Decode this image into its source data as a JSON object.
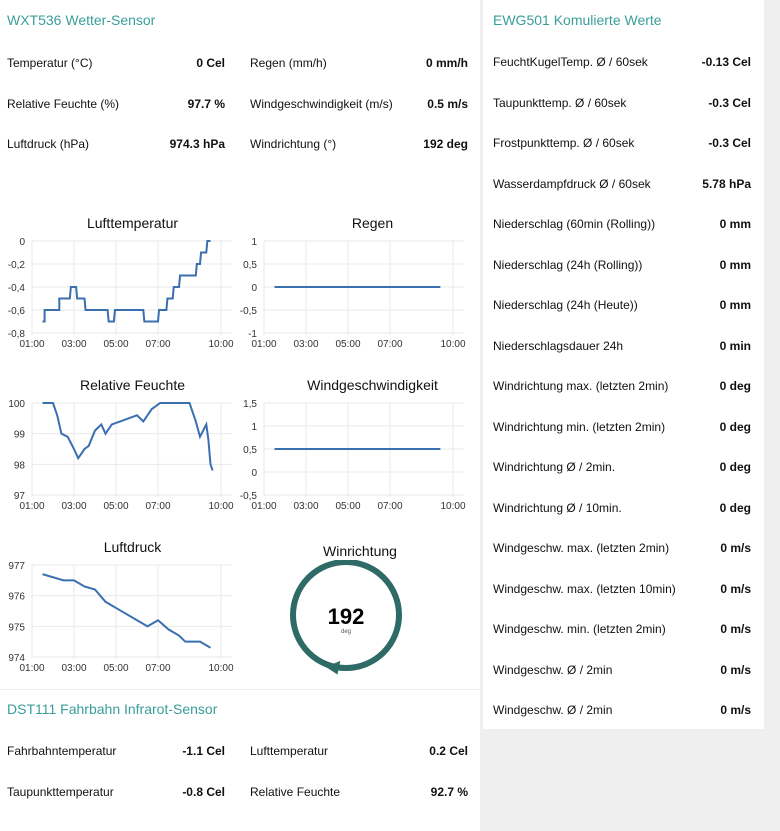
{
  "wxt": {
    "title": "WXT536 Wetter-Sensor",
    "rows": [
      {
        "label": "Temperatur (°C)",
        "value": "0 Cel",
        "label2": "Regen (mm/h)",
        "value2": "0 mm/h"
      },
      {
        "label": "Relative Feuchte (%)",
        "value": "97.7 %",
        "label2": "Windgeschwindigkeit (m/s)",
        "value2": "0.5 m/s"
      },
      {
        "label": "Luftdruck (hPa)",
        "value": "974.3 hPa",
        "label2": "Windrichtung (°)",
        "value2": "192 deg"
      }
    ]
  },
  "charts": [
    {
      "title": "Lufttemperatur",
      "yticks": [
        "0",
        "-0,2",
        "-0,4",
        "-0,6",
        "-0,8"
      ],
      "ylim": [
        -0.8,
        0
      ],
      "xticks": [
        "01:00",
        "03:00",
        "05:00",
        "07:00",
        "10:00"
      ],
      "points": [
        [
          1.5,
          -0.7
        ],
        [
          1.6,
          -0.7
        ],
        [
          1.6,
          -0.6
        ],
        [
          2.3,
          -0.6
        ],
        [
          2.3,
          -0.5
        ],
        [
          2.8,
          -0.5
        ],
        [
          2.85,
          -0.4
        ],
        [
          3.1,
          -0.4
        ],
        [
          3.15,
          -0.5
        ],
        [
          3.5,
          -0.5
        ],
        [
          3.55,
          -0.6
        ],
        [
          4.6,
          -0.6
        ],
        [
          4.65,
          -0.7
        ],
        [
          4.9,
          -0.7
        ],
        [
          4.95,
          -0.6
        ],
        [
          6.3,
          -0.6
        ],
        [
          6.35,
          -0.7
        ],
        [
          7.0,
          -0.7
        ],
        [
          7.05,
          -0.6
        ],
        [
          7.4,
          -0.6
        ],
        [
          7.45,
          -0.5
        ],
        [
          7.7,
          -0.5
        ],
        [
          7.75,
          -0.4
        ],
        [
          8.0,
          -0.4
        ],
        [
          8.05,
          -0.3
        ],
        [
          8.8,
          -0.3
        ],
        [
          8.85,
          -0.2
        ],
        [
          9.0,
          -0.2
        ],
        [
          9.05,
          -0.1
        ],
        [
          9.3,
          -0.1
        ],
        [
          9.35,
          0
        ],
        [
          9.5,
          0
        ]
      ]
    },
    {
      "title": "Regen",
      "yticks": [
        "1",
        "0,5",
        "0",
        "-0,5",
        "-1"
      ],
      "ylim": [
        -1,
        1
      ],
      "xticks": [
        "01:00",
        "03:00",
        "05:00",
        "07:00",
        "10:00"
      ],
      "points": [
        [
          1.5,
          0
        ],
        [
          9.4,
          0
        ]
      ]
    },
    {
      "title": "Relative Feuchte",
      "yticks": [
        "100",
        "99",
        "98",
        "97"
      ],
      "ylim": [
        97,
        100
      ],
      "xticks": [
        "01:00",
        "03:00",
        "05:00",
        "07:00",
        "10:00"
      ],
      "points": [
        [
          1.5,
          100
        ],
        [
          2.0,
          100
        ],
        [
          2.2,
          99.6
        ],
        [
          2.4,
          99
        ],
        [
          2.7,
          98.9
        ],
        [
          3.0,
          98.5
        ],
        [
          3.2,
          98.2
        ],
        [
          3.5,
          98.5
        ],
        [
          3.7,
          98.6
        ],
        [
          4.0,
          99.1
        ],
        [
          4.3,
          99.3
        ],
        [
          4.5,
          99.0
        ],
        [
          4.8,
          99.3
        ],
        [
          5.2,
          99.4
        ],
        [
          5.6,
          99.5
        ],
        [
          6.0,
          99.6
        ],
        [
          6.3,
          99.4
        ],
        [
          6.7,
          99.8
        ],
        [
          7.1,
          100
        ],
        [
          8.5,
          100
        ],
        [
          8.8,
          99.4
        ],
        [
          9.0,
          98.9
        ],
        [
          9.3,
          99.3
        ],
        [
          9.4,
          98.8
        ],
        [
          9.5,
          98.0
        ],
        [
          9.6,
          97.8
        ]
      ]
    },
    {
      "title": "Windgeschwindigkeit",
      "yticks": [
        "1,5",
        "1",
        "0,5",
        "0",
        "-0,5"
      ],
      "ylim": [
        -0.5,
        1.5
      ],
      "xticks": [
        "01:00",
        "03:00",
        "05:00",
        "07:00",
        "10:00"
      ],
      "points": [
        [
          1.5,
          0.5
        ],
        [
          9.4,
          0.5
        ]
      ]
    },
    {
      "title": "Luftdruck",
      "yticks": [
        "977",
        "976",
        "975",
        "974"
      ],
      "ylim": [
        974,
        977
      ],
      "xticks": [
        "01:00",
        "03:00",
        "05:00",
        "07:00",
        "10:00"
      ],
      "points": [
        [
          1.5,
          976.7
        ],
        [
          2.0,
          976.6
        ],
        [
          2.5,
          976.5
        ],
        [
          3.0,
          976.5
        ],
        [
          3.5,
          976.3
        ],
        [
          4.0,
          976.2
        ],
        [
          4.5,
          975.8
        ],
        [
          5.0,
          975.6
        ],
        [
          5.5,
          975.4
        ],
        [
          6.0,
          975.2
        ],
        [
          6.5,
          975.0
        ],
        [
          7.0,
          975.2
        ],
        [
          7.5,
          974.9
        ],
        [
          8.0,
          974.7
        ],
        [
          8.3,
          974.5
        ],
        [
          9.0,
          974.5
        ],
        [
          9.5,
          974.3
        ]
      ]
    }
  ],
  "gauge": {
    "title": "Winrichtung",
    "value": "192",
    "unit": "deg",
    "degrees": 192,
    "color": "#2e6b66"
  },
  "dst": {
    "title": "DST111 Fahrbahn Infrarot-Sensor",
    "rows": [
      {
        "label": "Fahrbahntemperatur",
        "value": "-1.1 Cel",
        "label2": "Lufttemperatur",
        "value2": "0.2 Cel"
      },
      {
        "label": "Taupunkttemperatur",
        "value": "-0.8 Cel",
        "label2": "Relative Feuchte",
        "value2": "92.7 %"
      }
    ]
  },
  "ewg": {
    "title": "EWG501 Komulierte Werte",
    "rows": [
      {
        "label": "FeuchtKugelTemp. Ø / 60sek",
        "value": "-0.13 Cel"
      },
      {
        "label": "Taupunkttemp. Ø / 60sek",
        "value": "-0.3 Cel"
      },
      {
        "label": "Frostpunkttemp. Ø / 60sek",
        "value": "-0.3 Cel"
      },
      {
        "label": "Wasserdampfdruck Ø / 60sek",
        "value": "5.78 hPa"
      },
      {
        "label": "Niederschlag (60min (Rolling))",
        "value": "0 mm"
      },
      {
        "label": "Niederschlag (24h (Rolling))",
        "value": "0 mm"
      },
      {
        "label": "Niederschlag (24h (Heute))",
        "value": "0 mm"
      },
      {
        "label": "Niederschlagsdauer 24h",
        "value": "0 min"
      },
      {
        "label": "Windrichtung max. (letzten 2min)",
        "value": "0 deg"
      },
      {
        "label": "Windrichtung min. (letzten 2min)",
        "value": "0 deg"
      },
      {
        "label": "Windrichtung Ø / 2min.",
        "value": "0 deg"
      },
      {
        "label": "Windrichtung Ø / 10min.",
        "value": "0 deg"
      },
      {
        "label": "Windgeschw. max. (letzten 2min)",
        "value": "0 m/s"
      },
      {
        "label": "Windgeschw. max. (letzten 10min)",
        "value": "0 m/s"
      },
      {
        "label": "Windgeschw. min. (letzten 2min)",
        "value": "0 m/s"
      },
      {
        "label": "Windgeschw. Ø / 2min",
        "value": "0 m/s"
      },
      {
        "label": "Windgeschw. Ø / 2min",
        "value": "0 m/s"
      }
    ]
  }
}
